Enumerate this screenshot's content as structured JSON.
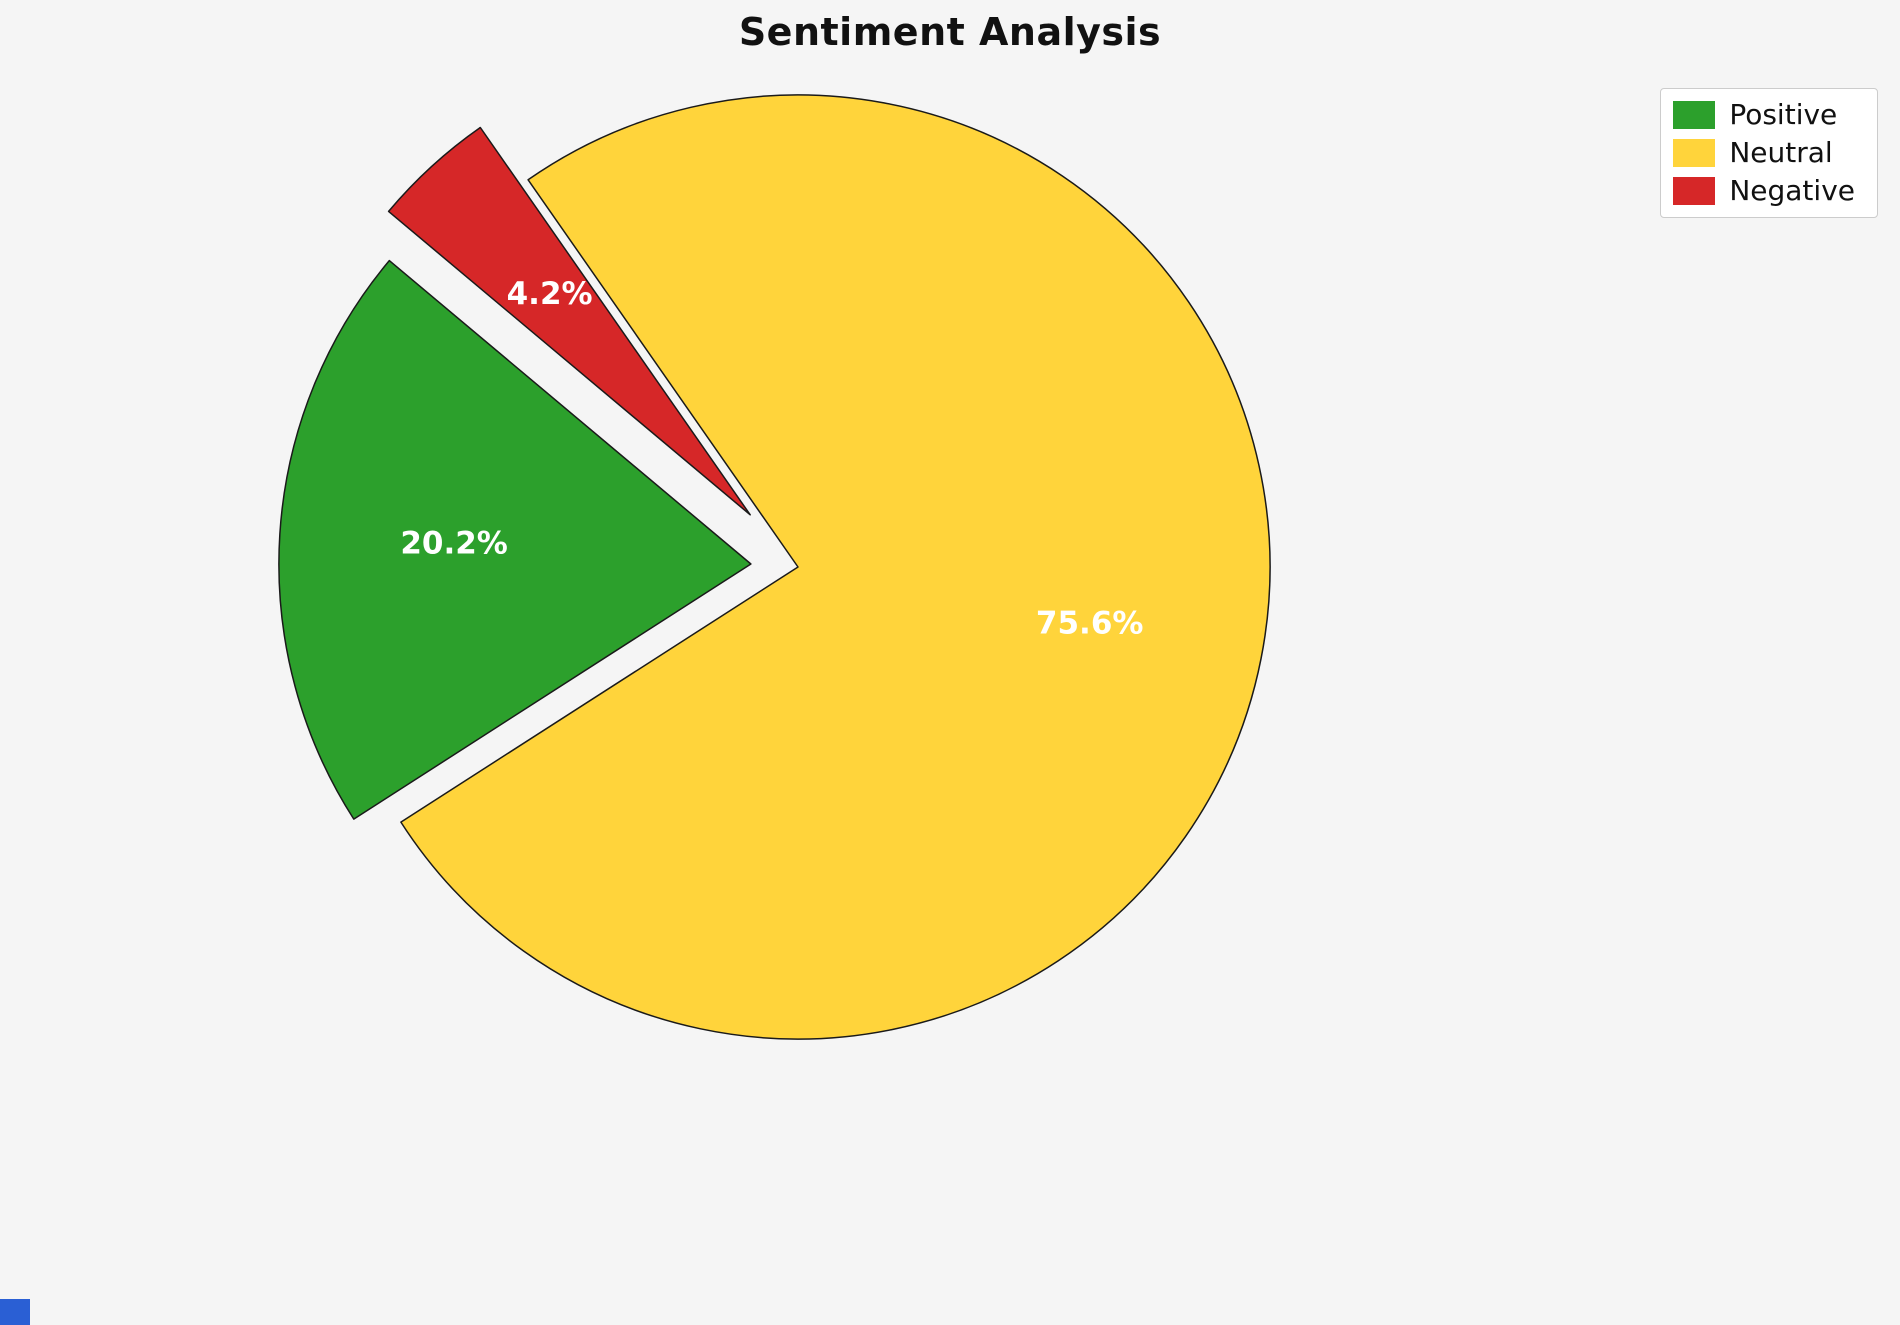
{
  "page": {
    "background": "#f5f5f5"
  },
  "title": "Sentiment Analysis",
  "legend": {
    "position": "upper right",
    "items": [
      {
        "label": "Positive",
        "color": "#2ca02c"
      },
      {
        "label": "Neutral",
        "color": "#ffd43b"
      },
      {
        "label": "Negative",
        "color": "#d62728"
      }
    ]
  },
  "chart_data": {
    "type": "pie",
    "title": "Sentiment Analysis",
    "labels": [
      "Positive",
      "Neutral",
      "Negative"
    ],
    "values": [
      20.2,
      75.6,
      4.2
    ],
    "pct_labels": [
      "20.2%",
      "75.6%",
      "4.2%"
    ],
    "colors": [
      "#2ca02c",
      "#ffd43b",
      "#d62728"
    ],
    "edge_color": "#1a1a1a",
    "pct_label_color": "#ffffff",
    "start_angle": 140,
    "direction": "counterclockwise",
    "explode": [
      0.1,
      0.0,
      0.15
    ],
    "pct_distance": 0.63,
    "legend_position": "upper right",
    "grid": false
  },
  "corner_marker": {
    "color": "#2a5fd4"
  }
}
